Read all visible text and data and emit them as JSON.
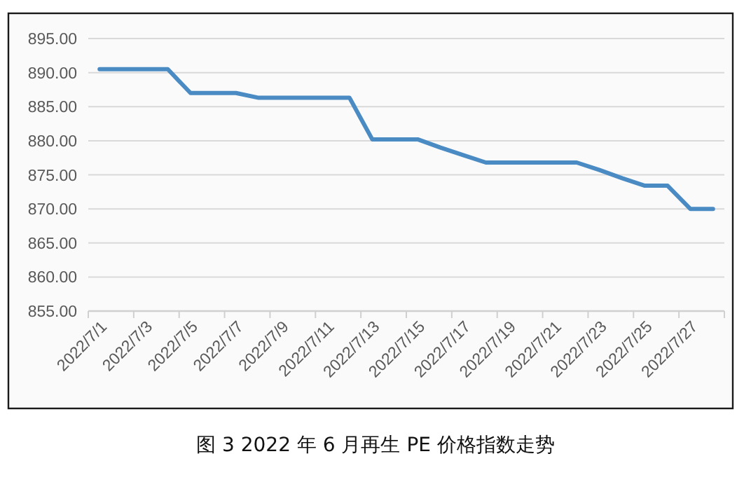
{
  "chart_data": {
    "type": "line",
    "title": "图 3  2022 年 6 月再生 PE 价格指数走势",
    "categories": [
      "2022/7/1",
      null,
      "2022/7/3",
      null,
      "2022/7/5",
      null,
      "2022/7/7",
      null,
      "2022/7/9",
      null,
      "2022/7/11",
      null,
      "2022/7/13",
      null,
      "2022/7/15",
      null,
      "2022/7/17",
      null,
      "2022/7/19",
      null,
      "2022/7/21",
      null,
      "2022/7/23",
      null,
      "2022/7/25",
      null,
      "2022/7/27",
      null
    ],
    "series": [
      {
        "color": "#4a8bc4",
        "values": [
          890.5,
          890.5,
          890.5,
          890.5,
          887.0,
          887.0,
          887.0,
          886.3,
          886.3,
          886.3,
          886.3,
          886.3,
          880.2,
          880.2,
          880.2,
          879.0,
          877.9,
          876.8,
          876.8,
          876.8,
          876.8,
          876.8,
          875.7,
          874.5,
          873.4,
          873.4,
          870.0,
          870.0
        ]
      }
    ],
    "ylim": [
      855,
      895
    ],
    "yticks": [
      {
        "value": 855,
        "label": "855.00"
      },
      {
        "value": 860,
        "label": "860.00"
      },
      {
        "value": 865,
        "label": "865.00"
      },
      {
        "value": 870,
        "label": "870.00"
      },
      {
        "value": 875,
        "label": "875.00"
      },
      {
        "value": 880,
        "label": "880.00"
      },
      {
        "value": 885,
        "label": "885.00"
      },
      {
        "value": 890,
        "label": "890.00"
      },
      {
        "value": 895,
        "label": "895.00"
      }
    ],
    "grid": "y",
    "marker": "none",
    "line_style": "solid"
  }
}
